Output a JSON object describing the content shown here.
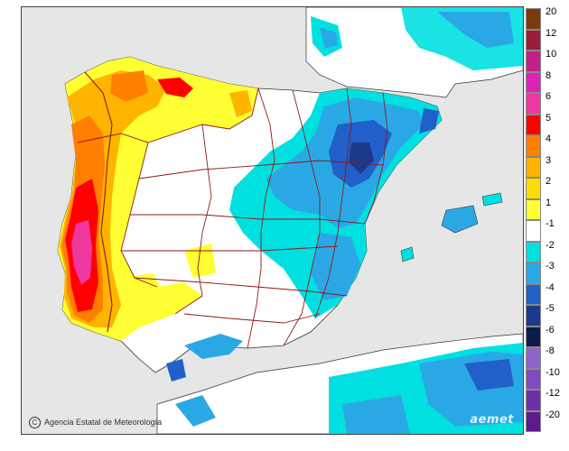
{
  "credit": "Agencia Estatal de Meteorología",
  "watermark": "aemet",
  "legend": {
    "labels": [
      "20",
      "12",
      "10",
      "8",
      "6",
      "5",
      "4",
      "3",
      "2",
      "1",
      "-1",
      "-2",
      "-3",
      "-4",
      "-5",
      "-6",
      "-8",
      "-10",
      "-12",
      "-20"
    ],
    "colors": [
      "#7a3a0a",
      "#9b1c3a",
      "#c41e8a",
      "#e11fb4",
      "#f0379f",
      "#ff0000",
      "#ff7f00",
      "#ffb400",
      "#ffdc00",
      "#ffff33",
      "#ffffff",
      "#00e0e0",
      "#2aa8e6",
      "#2060c8",
      "#1c3a8c",
      "#0c1a4c",
      "#8e64c8",
      "#7e4cbe",
      "#6e30a8",
      "#5c1a8c"
    ]
  },
  "colors": {
    "sea": "#e6e6e6",
    "land_neutral": "#ffffff",
    "border_lines": "#8b1a1a"
  }
}
